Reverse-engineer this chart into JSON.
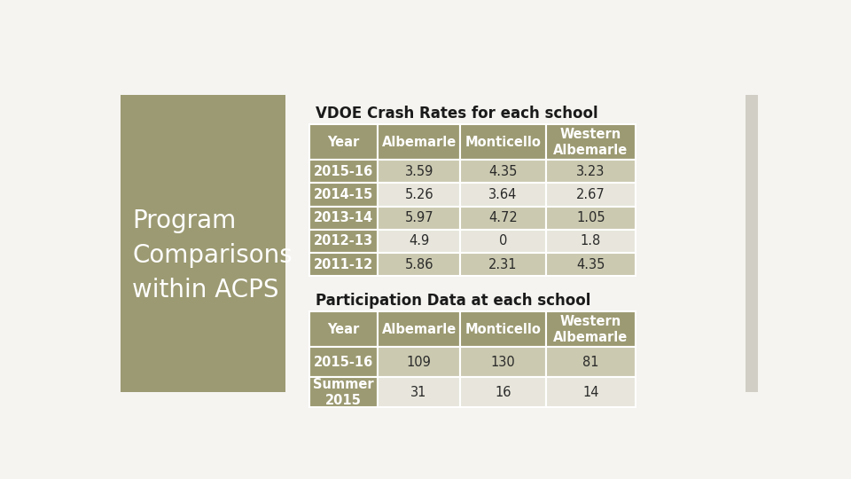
{
  "title1": "VDOE Crash Rates for each school",
  "title2": "Participation Data at each school",
  "left_panel_color": "#9c9a72",
  "left_text": "Program\nComparisons\nwithin ACPS",
  "bg_color": "#f5f4f0",
  "header_bg": "#9c9a72",
  "header_text_color": "#ffffff",
  "row_year_bg": "#9c9a72",
  "row_year_text": "#ffffff",
  "row_odd_bg": "#cbc9b0",
  "row_even_bg": "#e8e6dc",
  "table1_headers": [
    "Year",
    "Albemarle",
    "Monticello",
    "Western\nAlbemarle"
  ],
  "table1_rows": [
    [
      "2015-16",
      "3.59",
      "4.35",
      "3.23"
    ],
    [
      "2014-15",
      "5.26",
      "3.64",
      "2.67"
    ],
    [
      "2013-14",
      "5.97",
      "4.72",
      "1.05"
    ],
    [
      "2012-13",
      "4.9",
      "0",
      "1.8"
    ],
    [
      "2011-12",
      "5.86",
      "2.31",
      "4.35"
    ]
  ],
  "table2_headers": [
    "Year",
    "Albemarle",
    "Monticello",
    "Western\nAlbemarle"
  ],
  "table2_rows": [
    [
      "2015-16",
      "109",
      "130",
      "81"
    ],
    [
      "Summer\n2015",
      "31",
      "16",
      "14"
    ]
  ]
}
